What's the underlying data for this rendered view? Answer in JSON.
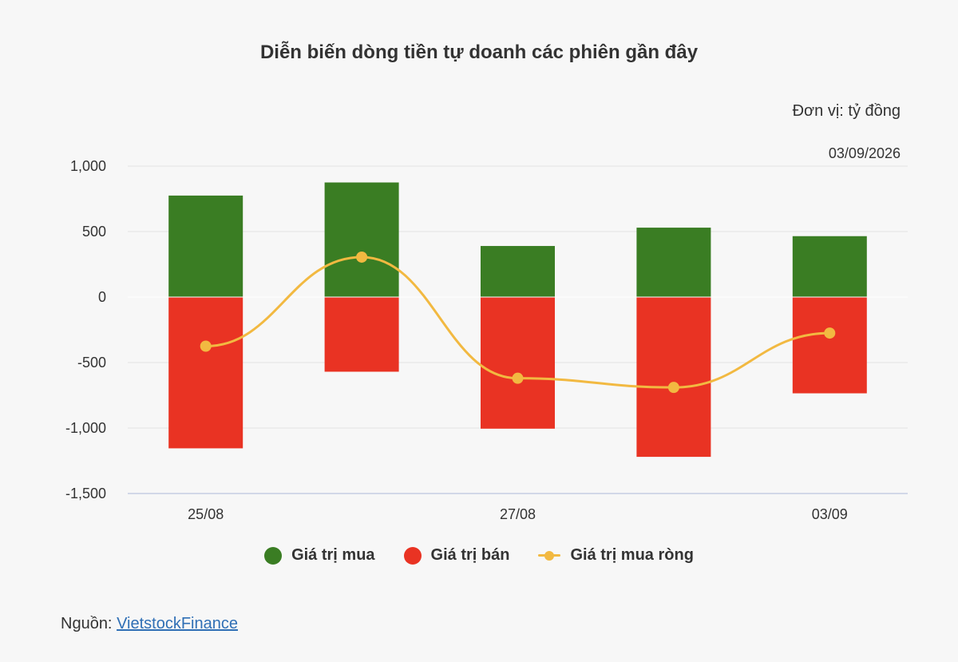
{
  "colors": {
    "buy": "#3a7d23",
    "sell": "#e93323",
    "net": "#f2b941",
    "grid": "#e3e3e3",
    "axis": "#c6cde3",
    "text": "#333333",
    "link": "#2f6fb5"
  },
  "chart_data": {
    "type": "bar",
    "title": "Diễn biến dòng tiền tự doanh các phiên gần đây",
    "unit_label": "Đơn vị: tỷ đồng",
    "date_label": "03/09/2026",
    "categories": [
      "25/08",
      "",
      "27/08",
      "",
      "03/09"
    ],
    "ylim": [
      -1500,
      1000
    ],
    "yticks": [
      1000,
      500,
      0,
      -500,
      -1000,
      -1500
    ],
    "ytick_labels": [
      "1,000",
      "500",
      "0",
      "-500",
      "-1,000",
      "-1,500"
    ],
    "grid": true,
    "legend_position": "bottom",
    "series": [
      {
        "name": "Giá trị mua",
        "type": "bar",
        "values": [
          775,
          875,
          390,
          530,
          465
        ]
      },
      {
        "name": "Giá trị bán",
        "type": "bar",
        "values": [
          -1155,
          -570,
          -1005,
          -1220,
          -735
        ]
      },
      {
        "name": "Giá trị mua ròng",
        "type": "line",
        "values": [
          -375,
          305,
          -620,
          -690,
          -275
        ]
      }
    ]
  },
  "source": {
    "prefix": "Nguồn: ",
    "link_text": "VietstockFinance"
  }
}
